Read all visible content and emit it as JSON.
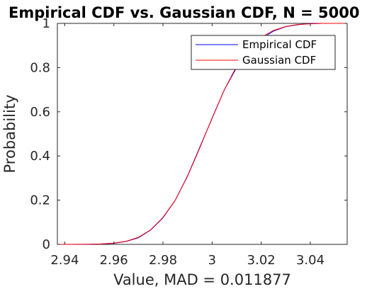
{
  "chart_data": {
    "type": "line",
    "title": "Empirical CDF vs. Gaussian CDF, N = 5000",
    "xlabel": "Value, MAD = 0.011877",
    "ylabel": "Probability",
    "xlim": [
      2.937,
      3.055
    ],
    "ylim": [
      0,
      1
    ],
    "xticks": [
      2.94,
      2.96,
      2.98,
      3.0,
      3.02,
      3.04
    ],
    "xtick_labels": [
      "2.94",
      "2.96",
      "2.98",
      "3",
      "3.02",
      "3.04"
    ],
    "yticks": [
      0,
      0.2,
      0.4,
      0.6,
      0.8,
      1
    ],
    "ytick_labels": [
      "0",
      "0.2",
      "0.4",
      "0.6",
      "0.8",
      "1"
    ],
    "legend_position": "top-right",
    "grid": false,
    "series": [
      {
        "name": "Empirical CDF",
        "color": "#0000ff",
        "x": [
          2.937,
          2.95,
          2.955,
          2.96,
          2.965,
          2.97,
          2.975,
          2.98,
          2.985,
          2.99,
          2.995,
          3.0,
          3.005,
          3.01,
          3.015,
          3.02,
          3.025,
          3.03,
          3.035,
          3.04,
          3.045,
          3.055
        ],
        "y": [
          0.0,
          0.0,
          0.002,
          0.005,
          0.013,
          0.03,
          0.065,
          0.12,
          0.2,
          0.31,
          0.44,
          0.57,
          0.7,
          0.8,
          0.88,
          0.93,
          0.965,
          0.985,
          0.994,
          0.999,
          1.0,
          1.0
        ]
      },
      {
        "name": "Gaussian CDF",
        "color": "#ff0000",
        "x": [
          2.937,
          2.95,
          2.955,
          2.96,
          2.965,
          2.97,
          2.975,
          2.98,
          2.985,
          2.99,
          2.995,
          3.0,
          3.005,
          3.01,
          3.015,
          3.02,
          3.025,
          3.03,
          3.035,
          3.04,
          3.045,
          3.055
        ],
        "y": [
          0.0,
          0.001,
          0.002,
          0.006,
          0.014,
          0.032,
          0.066,
          0.122,
          0.2,
          0.308,
          0.437,
          0.572,
          0.7,
          0.806,
          0.885,
          0.937,
          0.968,
          0.986,
          0.995,
          0.998,
          1.0,
          1.0
        ]
      }
    ]
  }
}
